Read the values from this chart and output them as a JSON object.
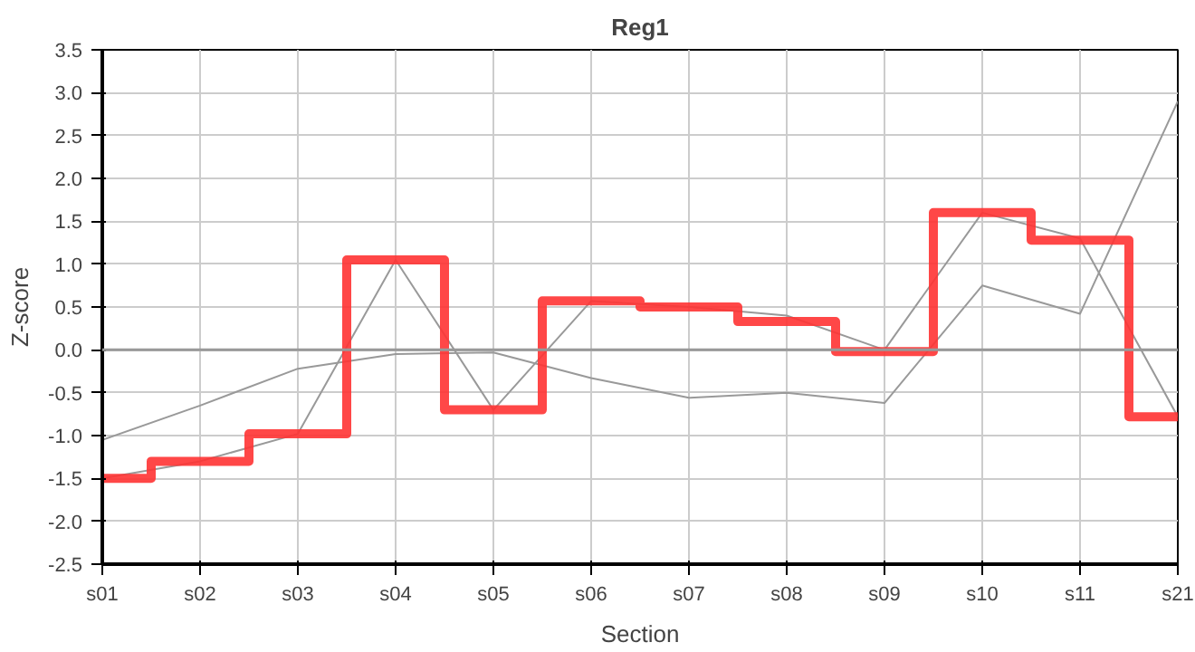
{
  "chart_data": {
    "type": "line",
    "title": "Reg1",
    "xlabel": "Section",
    "ylabel": "Z-score",
    "categories": [
      "s01",
      "s02",
      "s03",
      "s04",
      "s05",
      "s06",
      "s07",
      "s08",
      "s09",
      "s10",
      "s11",
      "s21"
    ],
    "series": [
      {
        "color": "#999999",
        "values": [
          -1.05,
          -0.65,
          -0.22,
          -0.05,
          -0.03,
          -0.33,
          -0.56,
          -0.5,
          -0.62,
          0.75,
          0.42,
          2.9
        ]
      },
      {
        "color": "#999999",
        "values": [
          -1.5,
          -1.3,
          -0.98,
          1.05,
          -0.7,
          0.57,
          0.5,
          0.4,
          0.0,
          1.6,
          1.3,
          -0.78
        ]
      },
      {
        "type": "step",
        "color": "#ff3333",
        "values": [
          -1.5,
          -1.3,
          -0.98,
          1.05,
          -0.7,
          0.57,
          0.5,
          0.33,
          -0.02,
          1.6,
          1.28,
          -0.78
        ]
      }
    ],
    "ylim": [
      -2.5,
      3.5
    ],
    "yticks": [
      {
        "value": -2.5,
        "label": "-2.5"
      },
      {
        "value": -2,
        "label": "-2.0"
      },
      {
        "value": -1.5,
        "label": "-1.5"
      },
      {
        "value": -1,
        "label": "-1.0"
      },
      {
        "value": -0.5,
        "label": "-0.5"
      },
      {
        "value": 0,
        "label": "0.0"
      },
      {
        "value": 0.5,
        "label": "0.5"
      },
      {
        "value": 1,
        "label": "1.0"
      },
      {
        "value": 1.5,
        "label": "1.5"
      },
      {
        "value": 2,
        "label": "2.0"
      },
      {
        "value": 2.5,
        "label": "2.5"
      },
      {
        "value": 3,
        "label": "3.0"
      },
      {
        "value": 3.5,
        "label": "3.5"
      }
    ],
    "ref_lines": [
      {
        "axis": "y",
        "value": 0,
        "color": "#999999"
      }
    ],
    "grid": true
  }
}
